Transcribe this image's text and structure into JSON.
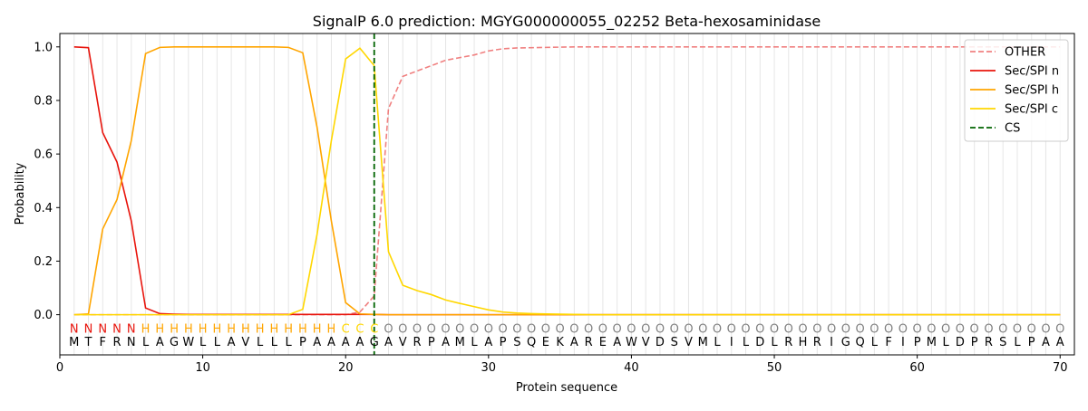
{
  "chart_data": {
    "type": "line",
    "title": "SignalP 6.0 prediction: MGYG000000055_02252 Beta-hexosaminidase",
    "xlabel": "Protein sequence",
    "ylabel": "Probability",
    "xlim": [
      0,
      71
    ],
    "ylim": [
      -0.15,
      1.05
    ],
    "x_ticks": [
      0,
      10,
      20,
      30,
      40,
      50,
      60,
      70
    ],
    "y_ticks": [
      0.0,
      0.2,
      0.4,
      0.6,
      0.8,
      1.0
    ],
    "x_tick_labels": [
      "0",
      "10",
      "20",
      "30",
      "40",
      "50",
      "60",
      "70"
    ],
    "y_tick_labels": [
      "0.0",
      "0.2",
      "0.4",
      "0.6",
      "0.8",
      "1.0"
    ],
    "legend_position": "top-right",
    "sequence": [
      "M",
      "T",
      "F",
      "R",
      "N",
      "L",
      "A",
      "G",
      "W",
      "L",
      "L",
      "A",
      "V",
      "L",
      "L",
      "L",
      "P",
      "A",
      "A",
      "A",
      "A",
      "G",
      "A",
      "V",
      "R",
      "P",
      "A",
      "M",
      "L",
      "A",
      "P",
      "S",
      "Q",
      "E",
      "K",
      "A",
      "R",
      "E",
      "A",
      "W",
      "V",
      "D",
      "S",
      "V",
      "M",
      "L",
      "I",
      "L",
      "D",
      "L",
      "R",
      "H",
      "R",
      "I",
      "G",
      "Q",
      "L",
      "F",
      "I",
      "P",
      "M",
      "L",
      "D",
      "P",
      "R",
      "S",
      "L",
      "P",
      "A",
      "A"
    ],
    "labels": [
      "N",
      "N",
      "N",
      "N",
      "N",
      "H",
      "H",
      "H",
      "H",
      "H",
      "H",
      "H",
      "H",
      "H",
      "H",
      "H",
      "H",
      "H",
      "H",
      "C",
      "C",
      "C",
      "O",
      "O",
      "O",
      "O",
      "O",
      "O",
      "O",
      "O",
      "O",
      "O",
      "O",
      "O",
      "O",
      "O",
      "O",
      "O",
      "O",
      "O",
      "O",
      "O",
      "O",
      "O",
      "O",
      "O",
      "O",
      "O",
      "O",
      "O",
      "O",
      "O",
      "O",
      "O",
      "O",
      "O",
      "O",
      "O",
      "O",
      "O",
      "O",
      "O",
      "O",
      "O",
      "O",
      "O",
      "O",
      "O",
      "O",
      "O"
    ],
    "label_colors": {
      "N": "#e8140c",
      "H": "#ffa500",
      "C": "#ffd700",
      "O": "#808080"
    },
    "series": [
      {
        "name": "OTHER",
        "color": "#f08080",
        "dash": "dashed",
        "values": [
          0,
          0,
          0,
          0,
          0,
          0,
          0,
          0,
          0,
          0,
          0,
          0,
          0,
          0,
          0,
          0,
          0,
          0,
          0,
          0,
          0.01,
          0.07,
          0.77,
          0.89,
          0.91,
          0.93,
          0.95,
          0.96,
          0.97,
          0.985,
          0.993,
          0.996,
          0.997,
          0.998,
          0.999,
          1,
          1,
          1,
          1,
          1,
          1,
          1,
          1,
          1,
          1,
          1,
          1,
          1,
          1,
          1,
          1,
          1,
          1,
          1,
          1,
          1,
          1,
          1,
          1,
          1,
          1,
          1,
          1,
          1,
          1,
          1,
          1,
          1,
          1,
          1
        ]
      },
      {
        "name": "Sec/SPI n",
        "color": "#e8140c",
        "dash": "solid",
        "values": [
          1.0,
          0.997,
          0.68,
          0.57,
          0.35,
          0.025,
          0.004,
          0.002,
          0.001,
          0.001,
          0.001,
          0.001,
          0.001,
          0.001,
          0.001,
          0.001,
          0.001,
          0.001,
          0.001,
          0.001,
          0.001,
          0.001,
          0,
          0,
          0,
          0,
          0,
          0,
          0,
          0,
          0,
          0,
          0,
          0,
          0,
          0,
          0,
          0,
          0,
          0,
          0,
          0,
          0,
          0,
          0,
          0,
          0,
          0,
          0,
          0,
          0,
          0,
          0,
          0,
          0,
          0,
          0,
          0,
          0,
          0,
          0,
          0,
          0,
          0,
          0,
          0,
          0,
          0,
          0,
          0
        ]
      },
      {
        "name": "Sec/SPI h",
        "color": "#ffa500",
        "dash": "solid",
        "values": [
          0.0,
          0.003,
          0.32,
          0.43,
          0.65,
          0.975,
          0.998,
          1.0,
          1.0,
          1.0,
          1.0,
          1.0,
          1.0,
          1.0,
          1.0,
          0.998,
          0.978,
          0.7,
          0.35,
          0.045,
          0.003,
          0.001,
          0,
          0,
          0,
          0,
          0,
          0,
          0,
          0,
          0,
          0,
          0,
          0,
          0,
          0,
          0,
          0,
          0,
          0,
          0,
          0,
          0,
          0,
          0,
          0,
          0,
          0,
          0,
          0,
          0,
          0,
          0,
          0,
          0,
          0,
          0,
          0,
          0,
          0,
          0,
          0,
          0,
          0,
          0,
          0,
          0,
          0,
          0,
          0
        ]
      },
      {
        "name": "Sec/SPI c",
        "color": "#ffd700",
        "dash": "solid",
        "values": [
          0,
          0,
          0,
          0,
          0,
          0,
          0,
          0,
          0,
          0,
          0,
          0,
          0,
          0,
          0,
          0,
          0.02,
          0.3,
          0.65,
          0.955,
          0.995,
          0.93,
          0.235,
          0.11,
          0.09,
          0.075,
          0.055,
          0.042,
          0.03,
          0.018,
          0.01,
          0.006,
          0.004,
          0.003,
          0.002,
          0.001,
          0,
          0,
          0,
          0,
          0,
          0,
          0,
          0,
          0,
          0,
          0,
          0,
          0,
          0,
          0,
          0,
          0,
          0,
          0,
          0,
          0,
          0,
          0,
          0,
          0,
          0,
          0,
          0,
          0,
          0,
          0,
          0,
          0,
          0
        ]
      }
    ],
    "cleavage_site": {
      "name": "CS",
      "x": 22,
      "color": "#006400",
      "dash": "dashed"
    }
  }
}
